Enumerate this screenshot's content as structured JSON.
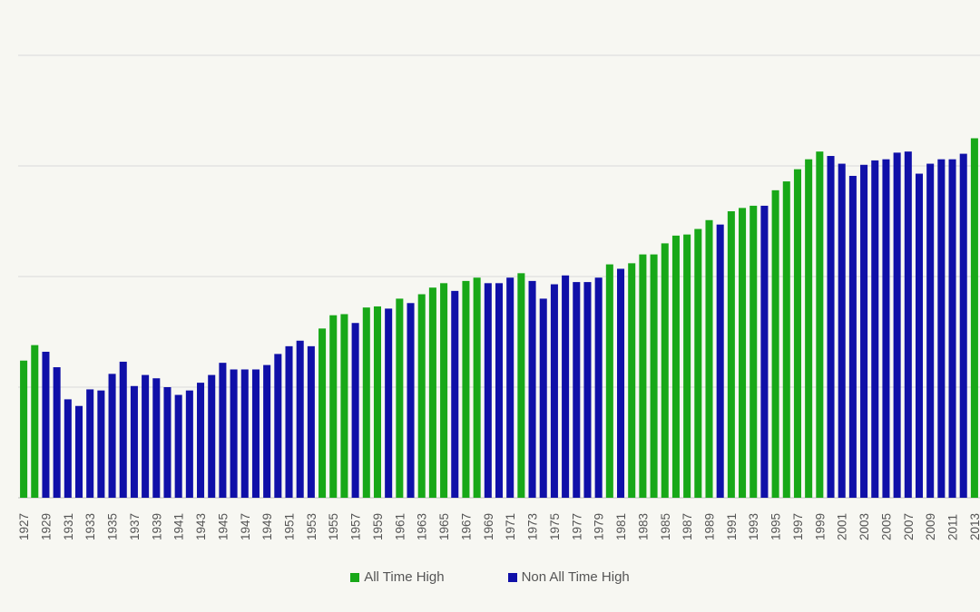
{
  "colors": {
    "ath": "#18a818",
    "non_ath": "#1010a8",
    "grid": "#d9d9d9",
    "axis": "#bfbfbf",
    "text": "#555555"
  },
  "legend": {
    "ath_label": "All Time High",
    "non_ath_label": "Non All Time High"
  },
  "chart_data": {
    "type": "bar",
    "title": "",
    "xlabel": "",
    "ylabel": "",
    "ylim": [
      0,
      400
    ],
    "grid": true,
    "legend_position": "bottom",
    "tick_labels_shown": [
      "1927",
      "1929",
      "1931",
      "1933",
      "1935",
      "1937",
      "1939",
      "1941",
      "1943",
      "1945",
      "1947",
      "1949",
      "1951",
      "1953",
      "1955",
      "1957",
      "1959",
      "1961",
      "1963",
      "1965",
      "1967",
      "1969",
      "1971",
      "1973",
      "1975",
      "1977",
      "1979",
      "1981",
      "1983",
      "1985",
      "1987",
      "1989",
      "1991",
      "1993",
      "1995",
      "1997",
      "1999",
      "2001",
      "2003",
      "2005",
      "2007",
      "2009",
      "2011",
      "2013"
    ],
    "categories": [
      1927,
      1928,
      1929,
      1930,
      1931,
      1932,
      1933,
      1934,
      1935,
      1936,
      1937,
      1938,
      1939,
      1940,
      1941,
      1942,
      1943,
      1944,
      1945,
      1946,
      1947,
      1948,
      1949,
      1950,
      1951,
      1952,
      1953,
      1954,
      1955,
      1956,
      1957,
      1958,
      1959,
      1960,
      1961,
      1962,
      1963,
      1964,
      1965,
      1966,
      1967,
      1968,
      1969,
      1970,
      1971,
      1972,
      1973,
      1974,
      1975,
      1976,
      1977,
      1978,
      1979,
      1980,
      1981,
      1982,
      1983,
      1984,
      1985,
      1986,
      1987,
      1988,
      1989,
      1990,
      1991,
      1992,
      1993,
      1994,
      1995,
      1996,
      1997,
      1998,
      1999,
      2000,
      2001,
      2002,
      2003,
      2004,
      2005,
      2006,
      2007,
      2008,
      2009,
      2010,
      2011,
      2012,
      2013
    ],
    "values": [
      124,
      138,
      132,
      118,
      89,
      83,
      98,
      97,
      112,
      123,
      101,
      111,
      108,
      100,
      93,
      97,
      104,
      111,
      122,
      116,
      116,
      116,
      120,
      130,
      137,
      142,
      137,
      153,
      165,
      166,
      158,
      172,
      173,
      171,
      180,
      176,
      184,
      190,
      194,
      187,
      196,
      199,
      194,
      194,
      199,
      203,
      196,
      180,
      193,
      201,
      195,
      195,
      199,
      211,
      207,
      212,
      220,
      220,
      230,
      237,
      238,
      243,
      251,
      247,
      259,
      262,
      264,
      264,
      278,
      286,
      297,
      306,
      313,
      309,
      302,
      291,
      301,
      305,
      306,
      312,
      313,
      293,
      302,
      306,
      306,
      311,
      325
    ],
    "all_time_high": [
      1,
      1,
      0,
      0,
      0,
      0,
      0,
      0,
      0,
      0,
      0,
      0,
      0,
      0,
      0,
      0,
      0,
      0,
      0,
      0,
      0,
      0,
      0,
      0,
      0,
      0,
      0,
      1,
      1,
      1,
      0,
      1,
      1,
      0,
      1,
      0,
      1,
      1,
      1,
      0,
      1,
      1,
      0,
      0,
      0,
      1,
      0,
      0,
      0,
      0,
      0,
      0,
      0,
      1,
      0,
      1,
      1,
      1,
      1,
      1,
      1,
      1,
      1,
      0,
      1,
      1,
      1,
      0,
      1,
      1,
      1,
      1,
      1,
      0,
      0,
      0,
      0,
      0,
      0,
      0,
      0,
      0,
      0,
      0,
      0,
      0,
      1
    ],
    "series": [
      {
        "name": "All Time High"
      },
      {
        "name": "Non All Time High"
      }
    ]
  }
}
